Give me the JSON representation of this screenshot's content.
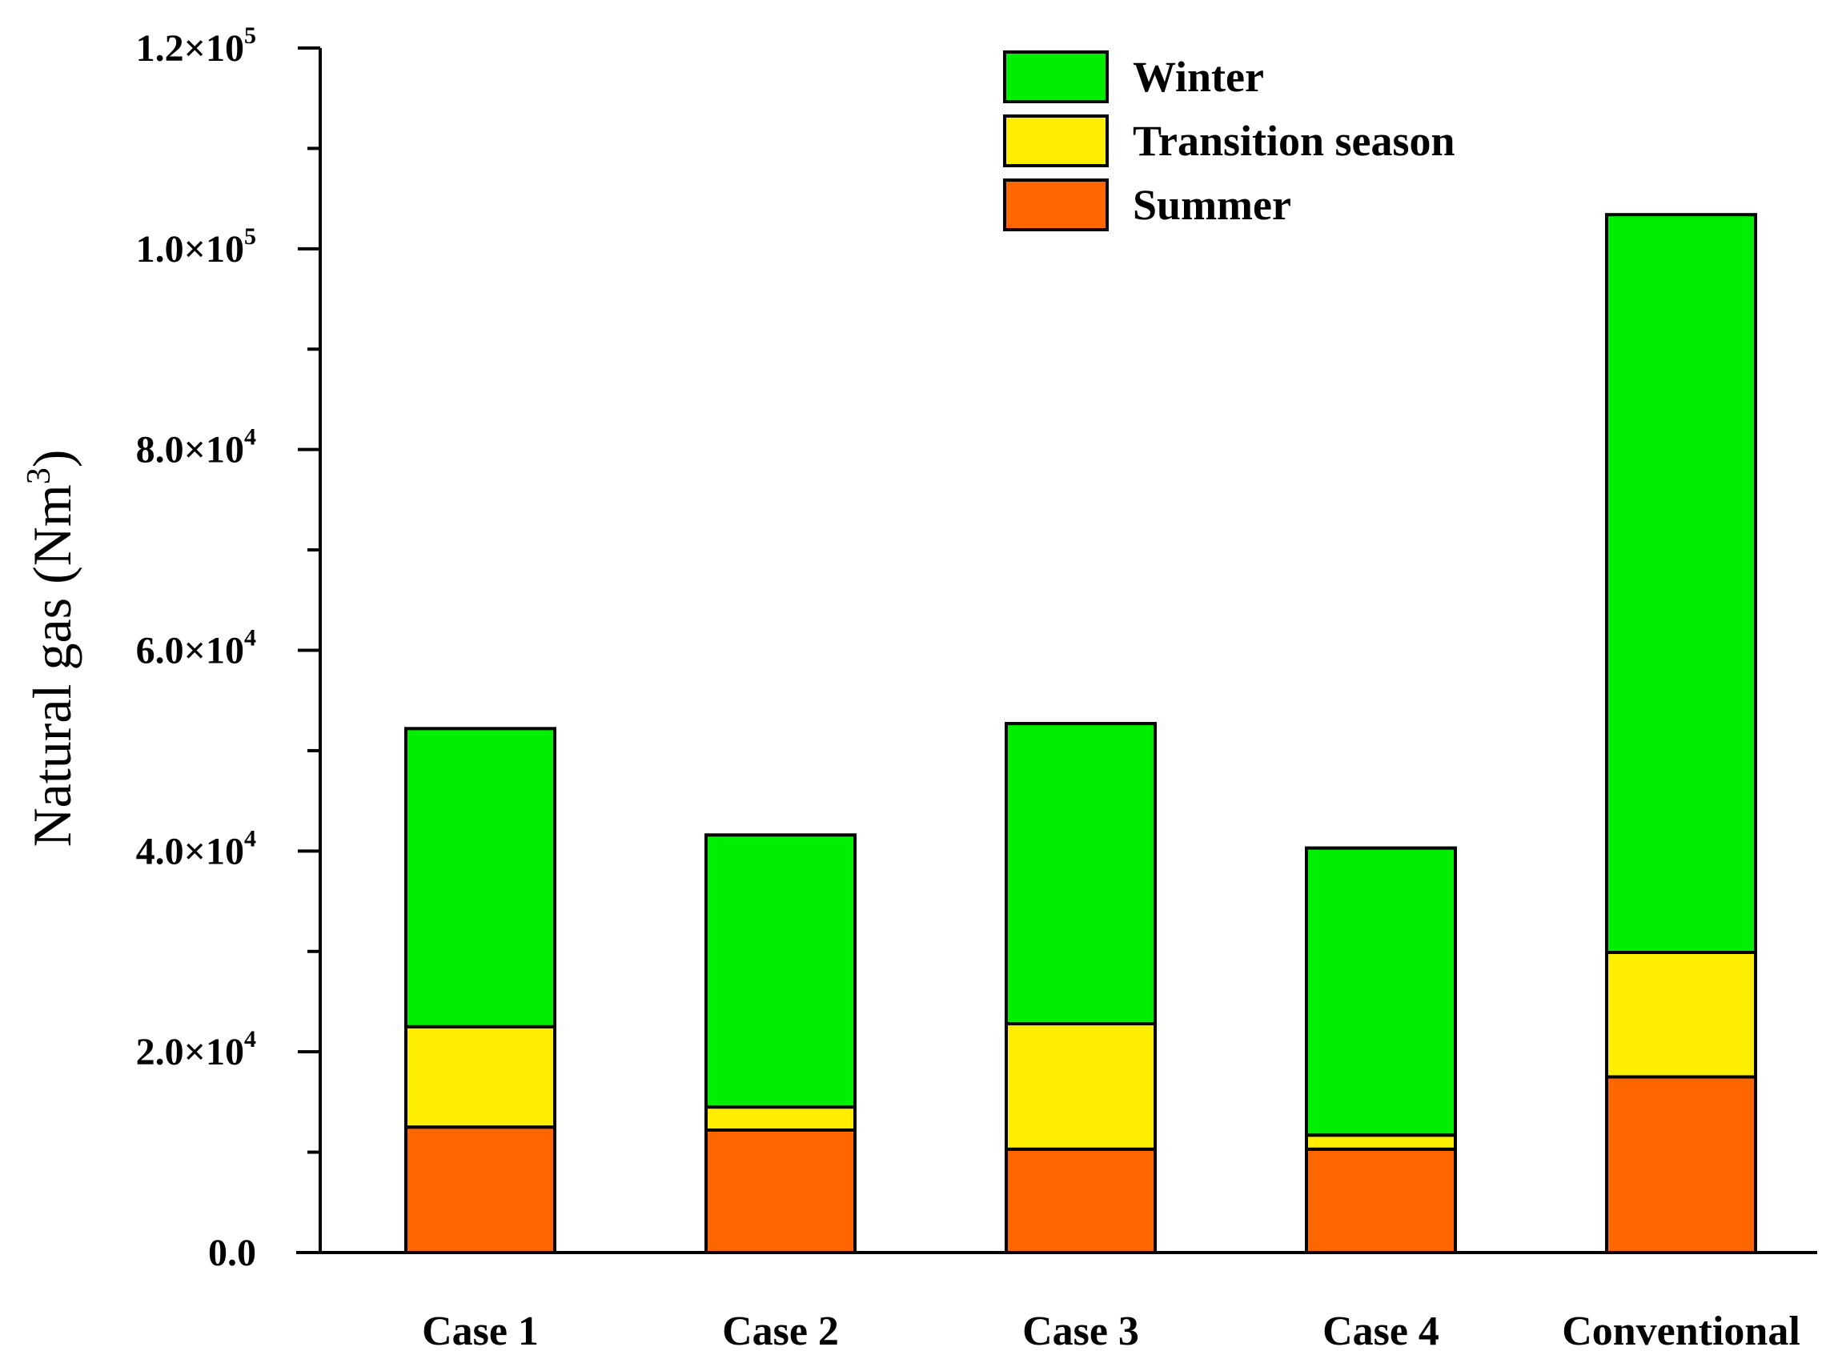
{
  "chart_data": {
    "type": "bar",
    "stacked": true,
    "title": "",
    "xlabel": "",
    "ylabel": {
      "text": "Natural gas (Nm",
      "superscript": "3",
      "suffix": ")"
    },
    "ylim": [
      0,
      120000
    ],
    "yticks": [
      {
        "value": 0,
        "label": "0.0",
        "exponent": ""
      },
      {
        "value": 20000,
        "label": "2.0×10",
        "exponent": "4"
      },
      {
        "value": 40000,
        "label": "4.0×10",
        "exponent": "4"
      },
      {
        "value": 60000,
        "label": "6.0×10",
        "exponent": "4"
      },
      {
        "value": 80000,
        "label": "8.0×10",
        "exponent": "4"
      },
      {
        "value": 100000,
        "label": "1.0×10",
        "exponent": "5"
      },
      {
        "value": 120000,
        "label": "1.2×10",
        "exponent": "5"
      }
    ],
    "categories": [
      "Case 1",
      "Case 2",
      "Case 3",
      "Case 4",
      "Conventional"
    ],
    "series": [
      {
        "name": "Summer",
        "color": "#ff6600",
        "values": [
          12500,
          12200,
          10300,
          10300,
          17500
        ]
      },
      {
        "name": "Transition season",
        "color": "#ffee00",
        "values": [
          10000,
          2300,
          12500,
          1400,
          12400
        ]
      },
      {
        "name": "Winter",
        "color": "#00ee00",
        "values": [
          29700,
          27100,
          29900,
          28600,
          73500
        ]
      }
    ],
    "legend": {
      "placement": "top-right",
      "order": [
        "Winter",
        "Transition season",
        "Summer"
      ]
    }
  }
}
